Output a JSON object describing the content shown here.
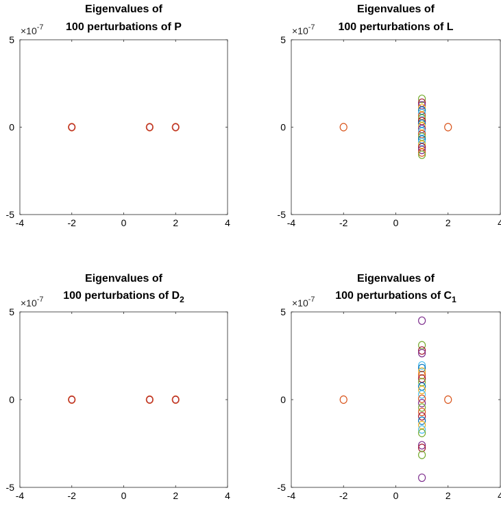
{
  "figure": {
    "background": "#ffffff"
  },
  "chart_data": [
    {
      "type": "scatter",
      "title_line1": "Eigenvalues of",
      "title_line2": "100 perturbations of P",
      "title_sub": "",
      "exponent_prefix": "×10",
      "exponent": "-7",
      "xlim": [
        -4,
        4
      ],
      "ylim": [
        -5,
        5
      ],
      "x_ticks": [
        "-4",
        "-2",
        "0",
        "2",
        "4"
      ],
      "y_ticks": [
        "5",
        "0",
        "-5"
      ],
      "grid": false,
      "marker": "open-circle",
      "points": [
        {
          "x": -2,
          "y": 0,
          "color": "#D95319"
        },
        {
          "x": 1,
          "y": 0,
          "color": "#D95319"
        },
        {
          "x": 2,
          "y": 0,
          "color": "#D95319"
        }
      ]
    },
    {
      "type": "scatter",
      "title_line1": "Eigenvalues of",
      "title_line2": "100 perturbations of L",
      "title_sub": "",
      "exponent_prefix": "×10",
      "exponent": "-7",
      "xlim": [
        -4,
        4
      ],
      "ylim": [
        -5,
        5
      ],
      "x_ticks": [
        "-4",
        "-2",
        "0",
        "2",
        "4"
      ],
      "y_ticks": [
        "5",
        "0",
        "-5"
      ],
      "grid": false,
      "marker": "open-circle",
      "points": [
        {
          "x": -2,
          "y": 0,
          "color": "#D95319"
        },
        {
          "x": 2,
          "y": 0,
          "color": "#D95319"
        },
        {
          "x": 1,
          "y": 1.62,
          "color": "#77AC30"
        },
        {
          "x": 1,
          "y": 1.4,
          "color": "#A2142F"
        },
        {
          "x": 1,
          "y": 1.25,
          "color": "#7E2F8E"
        },
        {
          "x": 1,
          "y": 1.1,
          "color": "#EDB120"
        },
        {
          "x": 1,
          "y": 0.95,
          "color": "#0072BD"
        },
        {
          "x": 1,
          "y": 0.8,
          "color": "#4DBEEE"
        },
        {
          "x": 1,
          "y": 0.65,
          "color": "#D95319"
        },
        {
          "x": 1,
          "y": 0.5,
          "color": "#77AC30"
        },
        {
          "x": 1,
          "y": 0.35,
          "color": "#A2142F"
        },
        {
          "x": 1,
          "y": 0.2,
          "color": "#0072BD"
        },
        {
          "x": 1,
          "y": 0.05,
          "color": "#EDB120"
        },
        {
          "x": 1,
          "y": -0.1,
          "color": "#7E2F8E"
        },
        {
          "x": 1,
          "y": -0.25,
          "color": "#4DBEEE"
        },
        {
          "x": 1,
          "y": -0.4,
          "color": "#D95319"
        },
        {
          "x": 1,
          "y": -0.55,
          "color": "#77AC30"
        },
        {
          "x": 1,
          "y": -0.7,
          "color": "#0072BD"
        },
        {
          "x": 1,
          "y": -0.85,
          "color": "#4DBEEE"
        },
        {
          "x": 1,
          "y": -1.0,
          "color": "#EDB120"
        },
        {
          "x": 1,
          "y": -1.15,
          "color": "#A2142F"
        },
        {
          "x": 1,
          "y": -1.3,
          "color": "#7E2F8E"
        },
        {
          "x": 1,
          "y": -1.45,
          "color": "#D95319"
        },
        {
          "x": 1,
          "y": -1.58,
          "color": "#77AC30"
        }
      ]
    },
    {
      "type": "scatter",
      "title_line1": "Eigenvalues of",
      "title_line2": "100 perturbations of D",
      "title_sub": "2",
      "exponent_prefix": "×10",
      "exponent": "-7",
      "xlim": [
        -4,
        4
      ],
      "ylim": [
        -5,
        5
      ],
      "x_ticks": [
        "-4",
        "-2",
        "0",
        "2",
        "4"
      ],
      "y_ticks": [
        "5",
        "0",
        "-5"
      ],
      "grid": false,
      "marker": "open-circle",
      "points": [
        {
          "x": -2,
          "y": 0,
          "color": "#D95319"
        },
        {
          "x": 1,
          "y": 0,
          "color": "#D95319"
        },
        {
          "x": 2,
          "y": 0,
          "color": "#D95319"
        }
      ]
    },
    {
      "type": "scatter",
      "title_line1": "Eigenvalues of",
      "title_line2": "100 perturbations of C",
      "title_sub": "1",
      "exponent_prefix": "×10",
      "exponent": "-7",
      "xlim": [
        -4,
        4
      ],
      "ylim": [
        -5,
        5
      ],
      "x_ticks": [
        "-4",
        "-2",
        "0",
        "2",
        "4"
      ],
      "y_ticks": [
        "5",
        "0",
        "-5"
      ],
      "grid": false,
      "marker": "open-circle",
      "points": [
        {
          "x": -2,
          "y": 0,
          "color": "#D95319"
        },
        {
          "x": 2,
          "y": 0,
          "color": "#D95319"
        },
        {
          "x": 1,
          "y": 4.5,
          "color": "#7E2F8E"
        },
        {
          "x": 1,
          "y": 3.1,
          "color": "#77AC30"
        },
        {
          "x": 1,
          "y": 2.8,
          "color": "#A2142F"
        },
        {
          "x": 1,
          "y": 2.65,
          "color": "#7E2F8E"
        },
        {
          "x": 1,
          "y": 1.95,
          "color": "#4DBEEE"
        },
        {
          "x": 1,
          "y": 1.8,
          "color": "#0072BD"
        },
        {
          "x": 1,
          "y": 1.6,
          "color": "#EDB120"
        },
        {
          "x": 1,
          "y": 1.4,
          "color": "#D95319"
        },
        {
          "x": 1,
          "y": 1.2,
          "color": "#A2142F"
        },
        {
          "x": 1,
          "y": 1.0,
          "color": "#77AC30"
        },
        {
          "x": 1,
          "y": 0.75,
          "color": "#0072BD"
        },
        {
          "x": 1,
          "y": 0.55,
          "color": "#EDB120"
        },
        {
          "x": 1,
          "y": 0.3,
          "color": "#4DBEEE"
        },
        {
          "x": 1,
          "y": 0.05,
          "color": "#D95319"
        },
        {
          "x": 1,
          "y": -0.2,
          "color": "#7E2F8E"
        },
        {
          "x": 1,
          "y": -0.45,
          "color": "#77AC30"
        },
        {
          "x": 1,
          "y": -0.7,
          "color": "#D95319"
        },
        {
          "x": 1,
          "y": -0.95,
          "color": "#A2142F"
        },
        {
          "x": 1,
          "y": -1.2,
          "color": "#0072BD"
        },
        {
          "x": 1,
          "y": -1.45,
          "color": "#EDB120"
        },
        {
          "x": 1,
          "y": -1.7,
          "color": "#4DBEEE"
        },
        {
          "x": 1,
          "y": -1.9,
          "color": "#77AC30"
        },
        {
          "x": 1,
          "y": -2.6,
          "color": "#7E2F8E"
        },
        {
          "x": 1,
          "y": -2.75,
          "color": "#A2142F"
        },
        {
          "x": 1,
          "y": -3.15,
          "color": "#77AC30"
        },
        {
          "x": 1,
          "y": -4.45,
          "color": "#7E2F8E"
        }
      ]
    }
  ]
}
